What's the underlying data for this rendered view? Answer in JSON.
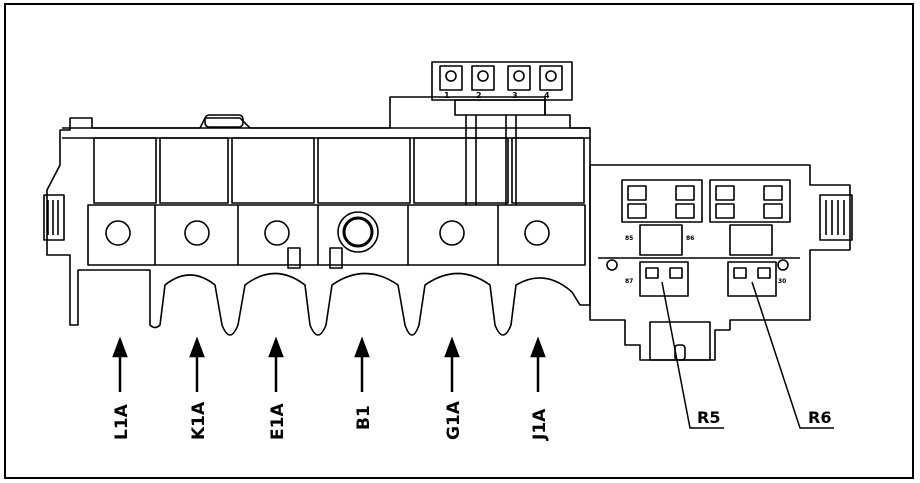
{
  "diagram": {
    "labels": [
      {
        "id": "l1a",
        "text": "L1A"
      },
      {
        "id": "k1a",
        "text": "K1A"
      },
      {
        "id": "e1a",
        "text": "E1A"
      },
      {
        "id": "b1",
        "text": "B1"
      },
      {
        "id": "g1a",
        "text": "G1A"
      },
      {
        "id": "j1a",
        "text": "J1A"
      }
    ],
    "callouts": [
      {
        "id": "r5",
        "text": "R5"
      },
      {
        "id": "r6",
        "text": "R6"
      }
    ],
    "terminal_numbers": [
      "1",
      "2",
      "3",
      "4"
    ],
    "relay_pins": [
      "85",
      "86",
      "87",
      "30"
    ]
  }
}
